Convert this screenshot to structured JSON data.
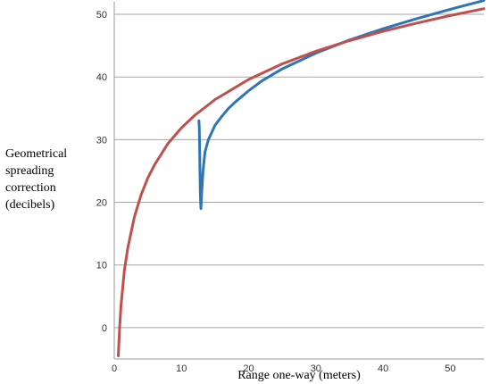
{
  "chart_data": {
    "type": "line",
    "title": "",
    "xlabel": "Range one-way (meters)",
    "ylabel_lines": [
      "Geometrical",
      "spreading",
      "correction",
      "(decibels)"
    ],
    "xlim": [
      0,
      55
    ],
    "ylim": [
      -5,
      52
    ],
    "x_ticks": [
      0,
      10,
      20,
      30,
      40,
      50
    ],
    "y_ticks": [
      0,
      10,
      20,
      30,
      40,
      50
    ],
    "grid": "horizontal",
    "legend": "none",
    "series": [
      {
        "color": "#2E75B6",
        "x": [
          12.6,
          12.65,
          12.7,
          12.75,
          12.8,
          12.85,
          12.9,
          13.0,
          13.2,
          13.5,
          14.0,
          15.0,
          16.0,
          17.0,
          18.0,
          20.0,
          22.0,
          25.0,
          30.0,
          35.0,
          40.0,
          45.0,
          50.0,
          55.0
        ],
        "y": [
          33.0,
          32.0,
          29.0,
          25.0,
          22.0,
          20.0,
          19.0,
          21.5,
          25.0,
          28.0,
          30.0,
          32.3,
          33.7,
          35.0,
          36.0,
          37.8,
          39.4,
          41.3,
          43.8,
          45.9,
          47.7,
          49.3,
          50.8,
          52.2
        ]
      },
      {
        "color": "#C0504D",
        "x": [
          0.6,
          0.8,
          1.0,
          1.5,
          2.0,
          3.0,
          4.0,
          5.0,
          6.0,
          8.0,
          10.0,
          12.0,
          15.0,
          20.0,
          25.0,
          30.0,
          35.0,
          40.0,
          45.0,
          50.0,
          55.0
        ],
        "y": [
          -4.5,
          0.0,
          3.5,
          9.1,
          12.7,
          17.7,
          21.2,
          23.9,
          26.0,
          29.4,
          31.9,
          33.9,
          36.4,
          39.6,
          42.1,
          44.1,
          45.8,
          47.3,
          48.6,
          49.8,
          50.9
        ]
      }
    ]
  }
}
